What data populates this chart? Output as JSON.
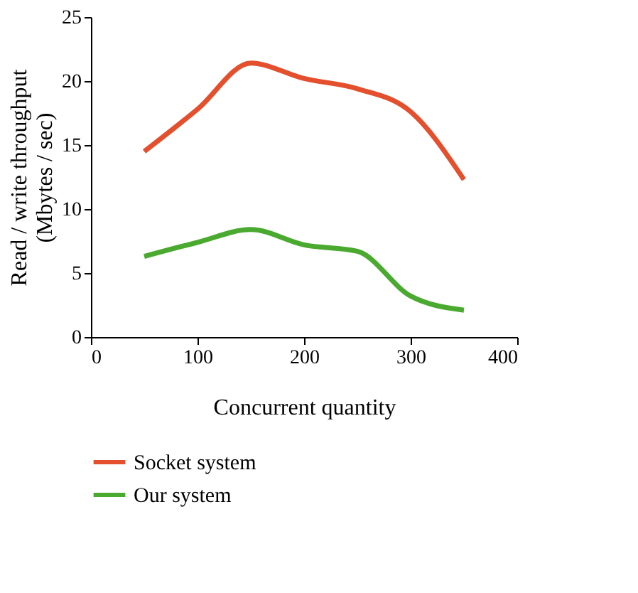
{
  "chart_data": {
    "type": "line",
    "xlabel": "Concurrent quantity",
    "ylabel": "Read / write throughput (Mbytes / sec)",
    "x": [
      50,
      100,
      150,
      200,
      250,
      300,
      350
    ],
    "series": [
      {
        "name": "Socket system",
        "color": "#e4502e",
        "values": [
          14.5,
          17.8,
          21.4,
          20.2,
          19.4,
          17.6,
          12.3
        ]
      },
      {
        "name": "Our system",
        "color": "#4aaa30",
        "values": [
          6.3,
          7.4,
          8.4,
          7.2,
          6.7,
          3.2,
          2.1
        ]
      }
    ],
    "xlim": [
      0,
      400
    ],
    "xticks": [
      0,
      100,
      200,
      300,
      400
    ],
    "ylim": [
      0,
      25
    ],
    "yticks": [
      0,
      5,
      10,
      15,
      20,
      25
    ],
    "grid": false,
    "legend": "bottom",
    "marker": "none",
    "line_style": "solid"
  }
}
